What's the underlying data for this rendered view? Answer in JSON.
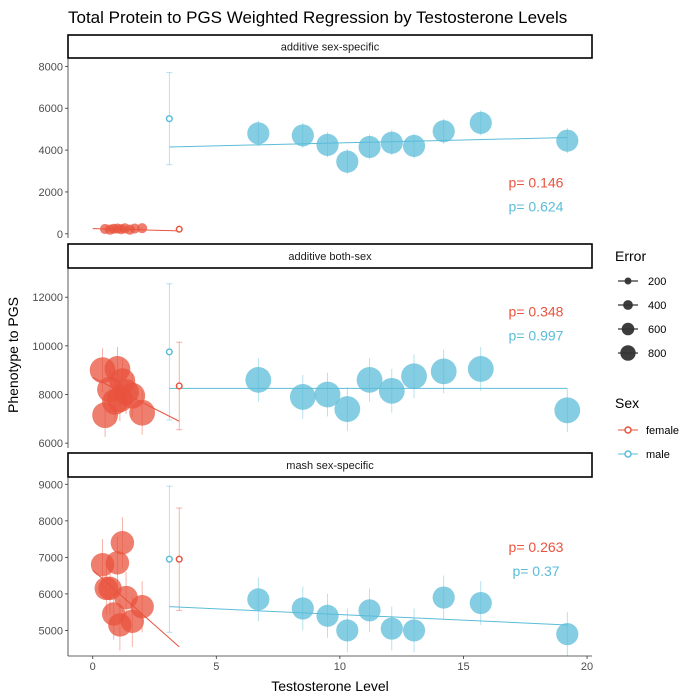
{
  "chart_data": {
    "type": "scatter",
    "title": "Total Protein to PGS Weighted Regression by Testosterone Levels",
    "xlabel": "Testosterone Level",
    "ylabel": "Phenotype to PGS",
    "xlim": [
      -1,
      20.2
    ],
    "x_ticks": [
      0,
      5,
      10,
      15,
      20
    ],
    "grid": false,
    "colors": {
      "female": "#e8533e",
      "male": "#5bbcd8"
    },
    "legend": {
      "position": "right",
      "error_title": "Error",
      "error_levels": [
        200,
        400,
        600,
        800
      ],
      "sex_title": "Sex",
      "sex_levels": [
        "female",
        "male"
      ]
    },
    "panels": [
      {
        "strip": "additive sex-specific",
        "ylim": [
          -200,
          8400
        ],
        "y_ticks": [
          0,
          2000,
          4000,
          6000,
          8000
        ],
        "pvalues": {
          "female": "p= 0.146",
          "male": "p= 0.624"
        },
        "points": {
          "female": [
            {
              "x": 0.5,
              "y": 230,
              "err": 40
            },
            {
              "x": 0.7,
              "y": 200,
              "err": 40
            },
            {
              "x": 0.85,
              "y": 240,
              "err": 40
            },
            {
              "x": 1.0,
              "y": 250,
              "err": 40
            },
            {
              "x": 1.15,
              "y": 220,
              "err": 40
            },
            {
              "x": 1.3,
              "y": 260,
              "err": 40
            },
            {
              "x": 1.5,
              "y": 200,
              "err": 40
            },
            {
              "x": 1.7,
              "y": 250,
              "err": 40
            },
            {
              "x": 2.0,
              "y": 270,
              "err": 40
            }
          ],
          "male": [
            {
              "x": 6.7,
              "y": 4800,
              "err": 600
            },
            {
              "x": 8.5,
              "y": 4700,
              "err": 600
            },
            {
              "x": 9.5,
              "y": 4250,
              "err": 600
            },
            {
              "x": 10.3,
              "y": 3450,
              "err": 600
            },
            {
              "x": 11.2,
              "y": 4150,
              "err": 600
            },
            {
              "x": 12.1,
              "y": 4350,
              "err": 600
            },
            {
              "x": 13.0,
              "y": 4200,
              "err": 600
            },
            {
              "x": 14.2,
              "y": 4900,
              "err": 600
            },
            {
              "x": 15.7,
              "y": 5300,
              "err": 600
            },
            {
              "x": 19.2,
              "y": 4450,
              "err": 600
            }
          ]
        },
        "hollow": {
          "female": {
            "x": 3.5,
            "y": 220,
            "lo": 140,
            "hi": 300
          },
          "male": {
            "x": 3.1,
            "y": 5500,
            "lo": 3300,
            "hi": 7700
          }
        },
        "fits": {
          "female": {
            "x": [
              0,
              3.5
            ],
            "y": [
              250,
              140
            ]
          },
          "male": {
            "x": [
              3.1,
              19.2
            ],
            "y": [
              4150,
              4600
            ]
          }
        }
      },
      {
        "strip": "additive both-sex",
        "ylim": [
          5800,
          13200
        ],
        "y_ticks": [
          6000,
          8000,
          10000,
          12000
        ],
        "pvalues": {
          "female": "p= 0.348",
          "male": "p= 0.997"
        },
        "points": {
          "female": [
            {
              "x": 0.4,
              "y": 9000,
              "err": 900
            },
            {
              "x": 0.5,
              "y": 7150,
              "err": 900
            },
            {
              "x": 0.7,
              "y": 8200,
              "err": 900
            },
            {
              "x": 0.9,
              "y": 7700,
              "err": 900
            },
            {
              "x": 1.0,
              "y": 9050,
              "err": 900
            },
            {
              "x": 1.1,
              "y": 7800,
              "err": 900
            },
            {
              "x": 1.2,
              "y": 8550,
              "err": 900
            },
            {
              "x": 1.35,
              "y": 8100,
              "err": 900
            },
            {
              "x": 1.6,
              "y": 7950,
              "err": 900
            },
            {
              "x": 2.0,
              "y": 7250,
              "err": 900
            }
          ],
          "male": [
            {
              "x": 6.7,
              "y": 8600,
              "err": 900
            },
            {
              "x": 8.5,
              "y": 7900,
              "err": 900
            },
            {
              "x": 9.5,
              "y": 8000,
              "err": 900
            },
            {
              "x": 10.3,
              "y": 7400,
              "err": 900
            },
            {
              "x": 11.2,
              "y": 8600,
              "err": 900
            },
            {
              "x": 12.1,
              "y": 8150,
              "err": 900
            },
            {
              "x": 13.0,
              "y": 8750,
              "err": 900
            },
            {
              "x": 14.2,
              "y": 8950,
              "err": 900
            },
            {
              "x": 15.7,
              "y": 9050,
              "err": 900
            },
            {
              "x": 19.2,
              "y": 7350,
              "err": 900
            }
          ]
        },
        "hollow": {
          "female": {
            "x": 3.5,
            "y": 8350,
            "lo": 6550,
            "hi": 10150
          },
          "male": {
            "x": 3.1,
            "y": 9750,
            "lo": 6950,
            "hi": 12550
          }
        },
        "fits": {
          "female": {
            "x": [
              0,
              3.5
            ],
            "y": [
              8700,
              6900
            ]
          },
          "male": {
            "x": [
              3.1,
              19.2
            ],
            "y": [
              8250,
              8250
            ]
          }
        }
      },
      {
        "strip": "mash sex-specific",
        "ylim": [
          4300,
          9200
        ],
        "y_ticks": [
          5000,
          6000,
          7000,
          8000,
          9000
        ],
        "pvalues": {
          "female": "p= 0.263",
          "male": "p= 0.37"
        },
        "points": {
          "female": [
            {
              "x": 0.4,
              "y": 6800,
              "err": 700
            },
            {
              "x": 0.55,
              "y": 6150,
              "err": 700
            },
            {
              "x": 0.7,
              "y": 6150,
              "err": 700
            },
            {
              "x": 0.85,
              "y": 5450,
              "err": 700
            },
            {
              "x": 1.0,
              "y": 6850,
              "err": 700
            },
            {
              "x": 1.1,
              "y": 5150,
              "err": 700
            },
            {
              "x": 1.2,
              "y": 7400,
              "err": 700
            },
            {
              "x": 1.35,
              "y": 5900,
              "err": 700
            },
            {
              "x": 1.6,
              "y": 5250,
              "err": 700
            },
            {
              "x": 2.0,
              "y": 5650,
              "err": 700
            }
          ],
          "male": [
            {
              "x": 6.7,
              "y": 5850,
              "err": 600
            },
            {
              "x": 8.5,
              "y": 5600,
              "err": 600
            },
            {
              "x": 9.5,
              "y": 5400,
              "err": 600
            },
            {
              "x": 10.3,
              "y": 5000,
              "err": 600
            },
            {
              "x": 11.2,
              "y": 5550,
              "err": 600
            },
            {
              "x": 12.1,
              "y": 5050,
              "err": 600
            },
            {
              "x": 13.0,
              "y": 5000,
              "err": 600
            },
            {
              "x": 14.2,
              "y": 5900,
              "err": 600
            },
            {
              "x": 15.7,
              "y": 5750,
              "err": 600
            },
            {
              "x": 19.2,
              "y": 4900,
              "err": 600
            }
          ]
        },
        "hollow": {
          "female": {
            "x": 3.5,
            "y": 6950,
            "lo": 5550,
            "hi": 8350
          },
          "male": {
            "x": 3.1,
            "y": 6950,
            "lo": 4950,
            "hi": 8950
          }
        },
        "fits": {
          "female": {
            "x": [
              0,
              3.5
            ],
            "y": [
              6650,
              4550
            ]
          },
          "male": {
            "x": [
              3.1,
              19.2
            ],
            "y": [
              5650,
              5150
            ]
          }
        }
      }
    ]
  }
}
